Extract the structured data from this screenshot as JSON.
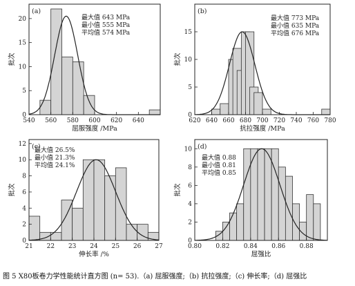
{
  "caption": "图 5   X80板卷力学性能统计直方图 (n= 53).（a) 屈服强度;（b) 抗拉强度;（c) 伸长率;（d) 屈强比",
  "chart_data": [
    {
      "type": "bar",
      "panel_label": "(a)",
      "xlabel": "屈服强度 /MPa",
      "ylabel": "批次",
      "xlim": [
        540,
        660
      ],
      "ylim": [
        0,
        23
      ],
      "xticks": [
        540,
        560,
        580,
        600,
        620,
        640
      ],
      "xtick_labels": [
        "540",
        "560",
        "580",
        "600",
        "620",
        "640"
      ],
      "yticks": [
        0,
        5,
        10,
        15,
        20
      ],
      "bin_width": 10,
      "bins": [
        [
          550,
          3
        ],
        [
          560,
          22
        ],
        [
          570,
          12
        ],
        [
          580,
          11
        ],
        [
          590,
          4
        ],
        [
          650,
          1
        ]
      ],
      "curve": {
        "mean": 574,
        "sd": 10.5,
        "peak": 20.5
      },
      "annotations": [
        "最大值 643 MPa",
        "最小值 555 MPa",
        "平均值 574 MPa"
      ]
    },
    {
      "type": "bar",
      "panel_label": "(b)",
      "xlabel": "抗拉强度 /MPa",
      "ylabel": "批次",
      "xlim": [
        620,
        780
      ],
      "ylim": [
        0,
        20
      ],
      "xticks": [
        620,
        640,
        660,
        680,
        700,
        720,
        740,
        760,
        780
      ],
      "xtick_labels": [
        "620",
        "640",
        "660",
        "680",
        "700",
        "720",
        "740",
        "760",
        "780"
      ],
      "yticks": [
        0,
        5,
        10,
        15
      ],
      "bin_width": 10,
      "bins": [
        [
          640,
          1
        ],
        [
          650,
          2
        ],
        [
          660,
          10
        ],
        [
          665,
          12
        ],
        [
          670,
          8
        ],
        [
          675,
          15
        ],
        [
          680,
          15
        ],
        [
          685,
          5
        ],
        [
          690,
          4
        ],
        [
          700,
          1
        ],
        [
          770,
          1
        ]
      ],
      "curve": {
        "mean": 676,
        "sd": 15,
        "peak": 15
      },
      "annotations": [
        "最大值 773 MPa",
        "最小值 635 MPa",
        "平均值 676 MPa"
      ]
    },
    {
      "type": "bar",
      "panel_label": "(c)",
      "xlabel": "伸长率 /%",
      "ylabel": "批次",
      "xlim": [
        21,
        27
      ],
      "ylim": [
        0,
        12.5
      ],
      "xticks": [
        21,
        22,
        23,
        24,
        25,
        26,
        27
      ],
      "xtick_labels": [
        "21",
        "22",
        "23",
        "24",
        "25",
        "26",
        "27"
      ],
      "yticks": [
        0,
        2,
        4,
        6,
        8,
        10,
        12
      ],
      "bin_width": 0.5,
      "bins": [
        [
          21.0,
          3
        ],
        [
          21.5,
          1
        ],
        [
          22.0,
          1
        ],
        [
          22.5,
          5
        ],
        [
          23.0,
          4
        ],
        [
          23.5,
          10
        ],
        [
          24.0,
          10
        ],
        [
          24.5,
          8
        ],
        [
          25.0,
          9
        ],
        [
          25.5,
          2
        ],
        [
          26.0,
          2
        ],
        [
          26.5,
          1
        ]
      ],
      "curve": {
        "mean": 24.1,
        "sd": 0.9,
        "peak": 10
      },
      "annotations": [
        "最大值 26.5%",
        "最小值 21.3%",
        "平均值 24.1%"
      ]
    },
    {
      "type": "bar",
      "panel_label": "(d)",
      "xlabel": "屈强比",
      "ylabel": "批次",
      "xlim": [
        0.8,
        0.895
      ],
      "ylim": [
        0,
        11
      ],
      "xticks": [
        0.8,
        0.82,
        0.84,
        0.86,
        0.88
      ],
      "xtick_labels": [
        "0.80",
        "0.82",
        "0.84",
        "0.86",
        "0.88"
      ],
      "yticks": [
        0,
        2,
        4,
        6,
        8,
        10
      ],
      "bin_width": 0.005,
      "bins": [
        [
          0.815,
          1
        ],
        [
          0.82,
          2
        ],
        [
          0.825,
          3
        ],
        [
          0.83,
          4
        ],
        [
          0.835,
          10
        ],
        [
          0.84,
          10
        ],
        [
          0.845,
          10
        ],
        [
          0.85,
          10
        ],
        [
          0.855,
          10
        ],
        [
          0.86,
          8
        ],
        [
          0.865,
          7
        ],
        [
          0.87,
          4
        ],
        [
          0.875,
          2
        ],
        [
          0.88,
          5
        ],
        [
          0.885,
          4
        ]
      ],
      "curve": {
        "mean": 0.848,
        "sd": 0.013,
        "peak": 10
      },
      "annotations": [
        "最大值 0.88",
        "最小值 0.81",
        "平均值 0.85"
      ]
    }
  ]
}
